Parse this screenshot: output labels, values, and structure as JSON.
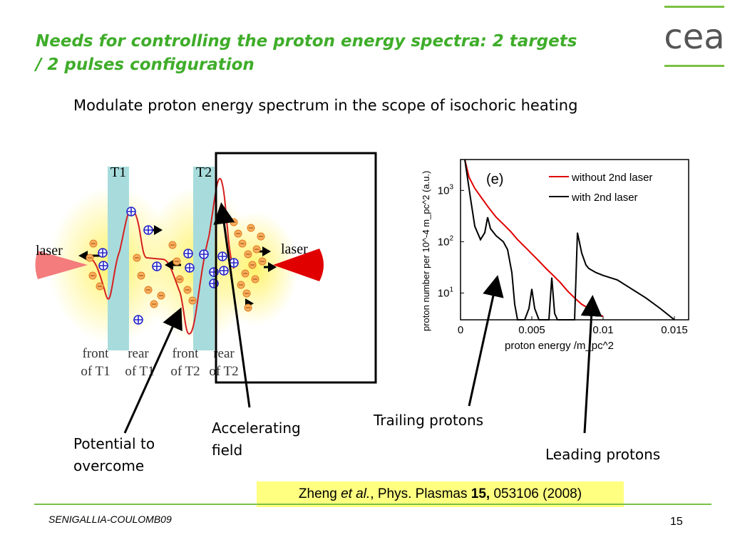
{
  "slide": {
    "title": "Needs for controlling the proton energy spectra: 2 targets / 2 pulses configuration",
    "subtitle": "Modulate proton energy spectrum in the scope of isochoric heating",
    "logo_text": "cea",
    "accent_color": "#3fad2a"
  },
  "schematic": {
    "target1": "T1",
    "target2": "T2",
    "laser_left": "laser",
    "laser_right": "laser",
    "front_t1": [
      "front",
      "of T1"
    ],
    "rear_t1": [
      "rear",
      "of T1"
    ],
    "front_t2": [
      "front",
      "of T2"
    ],
    "rear_t2": [
      "rear",
      "of T2"
    ]
  },
  "chart_data": {
    "type": "line",
    "panel_label": "(e)",
    "xlabel": "proton energy /m_pc^2",
    "ylabel": "proton number per 10^-4 m_pc^2 (a.u.)",
    "y_scale": "log",
    "x_ticks": [
      "0",
      "0.005",
      "0.01",
      "0.015"
    ],
    "y_ticks": [
      "10^1",
      "10^2",
      "10^3"
    ],
    "xlim": [
      0,
      0.016
    ],
    "ylim": [
      3,
      4000
    ],
    "legend_position": "top-right",
    "series": [
      {
        "name": "without 2nd laser",
        "color": "#e00000",
        "points": [
          [
            0.0003,
            4000
          ],
          [
            0.0006,
            1800
          ],
          [
            0.001,
            1100
          ],
          [
            0.0015,
            700
          ],
          [
            0.002,
            450
          ],
          [
            0.0025,
            300
          ],
          [
            0.003,
            220
          ],
          [
            0.0035,
            160
          ],
          [
            0.004,
            110
          ],
          [
            0.0045,
            80
          ],
          [
            0.005,
            58
          ],
          [
            0.0055,
            42
          ],
          [
            0.006,
            30
          ],
          [
            0.0065,
            22
          ],
          [
            0.007,
            16
          ],
          [
            0.0075,
            11
          ],
          [
            0.008,
            8
          ],
          [
            0.0085,
            6
          ],
          [
            0.009,
            5
          ],
          [
            0.0095,
            4
          ],
          [
            0.01,
            3.5
          ]
        ]
      },
      {
        "name": "with 2nd laser",
        "color": "#000000",
        "points": [
          [
            0.0003,
            4000
          ],
          [
            0.0007,
            700
          ],
          [
            0.001,
            200
          ],
          [
            0.0014,
            110
          ],
          [
            0.0017,
            150
          ],
          [
            0.0019,
            300
          ],
          [
            0.0021,
            180
          ],
          [
            0.0025,
            130
          ],
          [
            0.003,
            100
          ],
          [
            0.0033,
            70
          ],
          [
            0.0036,
            25
          ],
          [
            0.0038,
            6
          ],
          [
            0.004,
            3
          ],
          [
            0.0045,
            3
          ],
          [
            0.0048,
            5
          ],
          [
            0.005,
            12
          ],
          [
            0.0052,
            5
          ],
          [
            0.0055,
            3
          ],
          [
            0.0062,
            3
          ],
          [
            0.0064,
            20
          ],
          [
            0.0066,
            4
          ],
          [
            0.0068,
            3
          ],
          [
            0.008,
            3
          ],
          [
            0.0082,
            150
          ],
          [
            0.0085,
            60
          ],
          [
            0.0088,
            35
          ],
          [
            0.009,
            30
          ],
          [
            0.0095,
            25
          ],
          [
            0.01,
            22
          ],
          [
            0.011,
            18
          ],
          [
            0.012,
            12
          ],
          [
            0.013,
            8
          ],
          [
            0.014,
            5
          ],
          [
            0.015,
            3
          ]
        ]
      }
    ]
  },
  "annotations": {
    "potential": "Potential to overcome",
    "accelerating": "Accelerating field",
    "trailing": "Trailing protons",
    "leading": "Leading protons"
  },
  "reference": {
    "author": "Zheng ",
    "etal": "et al.",
    "journal": ", Phys. Plasmas ",
    "volume": "15,",
    "pages": " 053106 (2008)"
  },
  "footer": {
    "conference": "SENIGALLIA-COULOMB09",
    "page_number": "15"
  }
}
